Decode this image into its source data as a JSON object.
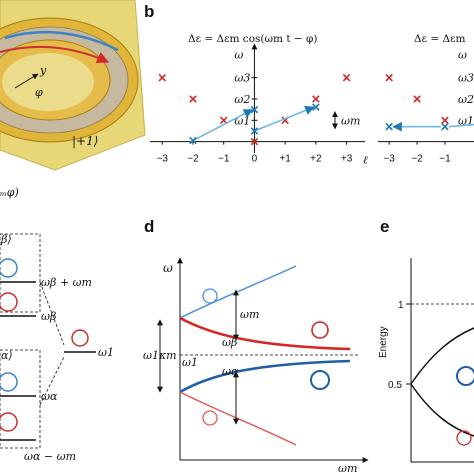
{
  "panels": {
    "b": "b",
    "d": "d",
    "e": "e"
  },
  "panel_a": {
    "ket": "|+1⟩",
    "angle": "φ",
    "axis_y": "y",
    "partial_caption": "ₘφ)"
  },
  "panel_c": {
    "beta_ket": "β⟩",
    "alpha_ket": "α⟩",
    "beta_plus": "ωβ + ωm",
    "beta": "ωβ",
    "one": "ω1",
    "alpha": "ωα",
    "alpha_minus": "ωα − ωm"
  },
  "panel_b": {
    "equation": "Δε = Δεm cos(ωm t − φ)",
    "equation_right": "Δε = Δεm",
    "omega_labels": [
      "ω",
      "ω3",
      "ω2",
      "ω1",
      "0"
    ],
    "omega_m": "ωm",
    "xlabel": "ℓ",
    "right_omegas": [
      "ω",
      "ω3",
      "ω2",
      "ω1"
    ]
  },
  "panel_d": {
    "ylabel": "ω",
    "xlabel": "ωm",
    "omega_m": "ωm",
    "omega_beta": "ωβ",
    "omega_alpha": "ωα",
    "omega_1_left": "ω1κm",
    "omega_1": "ω1"
  },
  "panel_e": {
    "ylabel": "Energy",
    "ticks": [
      "1",
      "0.5"
    ]
  },
  "chart_data": [
    {
      "type": "scatter",
      "title": "Δε = Δεm cos(ωm t − φ)",
      "xlabel": "ℓ",
      "ylabel": "ω",
      "x_ticks": [
        "−3",
        "−2",
        "−1",
        "0",
        "+1",
        "+2",
        "+3"
      ],
      "y_ticks": [
        "0",
        "ω1",
        "ω2",
        "ω3",
        "ω"
      ],
      "xlim": [
        -3.4,
        3.6
      ],
      "ylim": [
        -0.3,
        4.3
      ],
      "series": [
        {
          "marker": "x",
          "color": "#d62728",
          "points": [
            [
              -3,
              3
            ],
            [
              -2,
              2
            ],
            [
              -1,
              1
            ],
            [
              0,
              0
            ],
            [
              1,
              1
            ],
            [
              2,
              2
            ],
            [
              3,
              3
            ]
          ]
        },
        {
          "marker": "x",
          "color": "#1f77b4",
          "points": [
            [
              -2,
              0
            ],
            [
              -2,
              0
            ],
            [
              0,
              0.5
            ],
            [
              0,
              1.5
            ],
            [
              2,
              1.6
            ]
          ]
        }
      ],
      "arrows": [
        [
          [
            -2,
            0
          ],
          [
            0,
            1.5
          ]
        ],
        [
          [
            0,
            0.5
          ],
          [
            2,
            1.6
          ]
        ]
      ]
    },
    {
      "type": "scatter",
      "title": "Δε = Δεm",
      "x_ticks": [
        "−3",
        "−2",
        "−1",
        "0"
      ],
      "xlim": [
        -3.4,
        0.4
      ],
      "ylim": [
        -0.3,
        4.3
      ],
      "series": [
        {
          "marker": "x",
          "color": "#d62728",
          "points": [
            [
              -3,
              3
            ],
            [
              -2,
              2
            ],
            [
              -1,
              1
            ],
            [
              0,
              0
            ]
          ]
        },
        {
          "marker": "x",
          "color": "#1f77b4",
          "points": [
            [
              -3,
              0.7
            ],
            [
              -1,
              0.7
            ],
            [
              0,
              0.8
            ]
          ]
        }
      ]
    },
    {
      "type": "line",
      "xlabel": "ωm",
      "ylabel": "ω",
      "series": [
        {
          "name": "",
          "color": "#4a90d9",
          "shape": "upper-blue"
        },
        {
          "name": "",
          "color": "#d62728",
          "shape": "upper-red"
        },
        {
          "name": "",
          "color": "#1f5fa8",
          "shape": "lower-blue"
        },
        {
          "name": "",
          "color": "#e05a5a",
          "shape": "lower-red"
        }
      ]
    },
    {
      "type": "line",
      "ylabel": "Energy",
      "y_ticks": [
        "0.5",
        "1"
      ],
      "ylim": [
        0,
        1.2
      ],
      "series": [
        {
          "color": "#000000",
          "shape": "fork"
        }
      ]
    }
  ]
}
